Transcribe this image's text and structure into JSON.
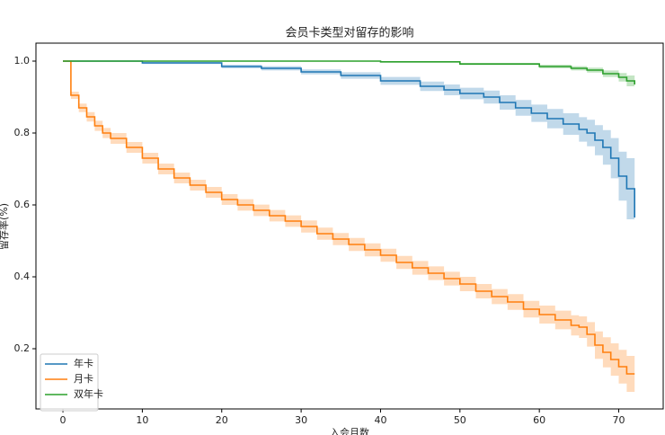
{
  "chart_data": {
    "type": "step",
    "title": "会员卡类型对留存的影响",
    "x_label": "入会月数",
    "y_label": "留存率(%)",
    "xlim": [
      -3.4,
      75.6
    ],
    "ylim": [
      0.0325,
      1.05
    ],
    "xticks": [
      0,
      10,
      20,
      30,
      40,
      50,
      60,
      70
    ],
    "yticks": [
      {
        "value": 0.2,
        "label": "0.2"
      },
      {
        "value": 0.4,
        "label": "0.4"
      },
      {
        "value": 0.6,
        "label": "0.6"
      },
      {
        "value": 0.8,
        "label": "0.8"
      },
      {
        "value": 1.0,
        "label": "1.0"
      }
    ],
    "legend": "lower left",
    "series": [
      {
        "name": "年卡",
        "color": "#1f77b4",
        "x": [
          0,
          10,
          20,
          25,
          30,
          35,
          40,
          45,
          48,
          50,
          53,
          55,
          57,
          59,
          61,
          63,
          65,
          66,
          67,
          68,
          69,
          70,
          71,
          72
        ],
        "values": [
          1.0,
          0.995,
          0.985,
          0.98,
          0.97,
          0.96,
          0.945,
          0.93,
          0.92,
          0.91,
          0.9,
          0.885,
          0.87,
          0.855,
          0.84,
          0.825,
          0.81,
          0.8,
          0.78,
          0.76,
          0.73,
          0.68,
          0.645,
          0.565
        ],
        "ci_lower": [
          1.0,
          0.992,
          0.98,
          0.974,
          0.963,
          0.951,
          0.934,
          0.917,
          0.905,
          0.894,
          0.882,
          0.865,
          0.848,
          0.831,
          0.813,
          0.795,
          0.776,
          0.763,
          0.738,
          0.712,
          0.674,
          0.612,
          0.56,
          0.445
        ],
        "ci_upper": [
          1.0,
          0.998,
          0.99,
          0.986,
          0.977,
          0.969,
          0.956,
          0.943,
          0.935,
          0.926,
          0.918,
          0.905,
          0.892,
          0.879,
          0.867,
          0.855,
          0.844,
          0.837,
          0.822,
          0.808,
          0.786,
          0.748,
          0.73,
          0.685
        ]
      },
      {
        "name": "月卡",
        "color": "#ff7f0e",
        "x": [
          0,
          1,
          2,
          3,
          4,
          5,
          6,
          8,
          10,
          12,
          14,
          16,
          18,
          20,
          22,
          24,
          26,
          28,
          30,
          32,
          34,
          36,
          38,
          40,
          42,
          44,
          46,
          48,
          50,
          52,
          54,
          56,
          58,
          60,
          62,
          64,
          65,
          66,
          67,
          68,
          69,
          70,
          71,
          72
        ],
        "values": [
          1.0,
          0.905,
          0.87,
          0.845,
          0.82,
          0.8,
          0.785,
          0.76,
          0.73,
          0.7,
          0.675,
          0.655,
          0.635,
          0.615,
          0.6,
          0.585,
          0.57,
          0.555,
          0.54,
          0.52,
          0.505,
          0.49,
          0.475,
          0.46,
          0.44,
          0.425,
          0.41,
          0.395,
          0.38,
          0.36,
          0.345,
          0.33,
          0.31,
          0.295,
          0.28,
          0.265,
          0.26,
          0.24,
          0.21,
          0.19,
          0.17,
          0.15,
          0.13,
          0.13
        ],
        "ci_lower": [
          1.0,
          0.895,
          0.858,
          0.832,
          0.806,
          0.786,
          0.77,
          0.745,
          0.715,
          0.685,
          0.66,
          0.64,
          0.62,
          0.6,
          0.584,
          0.569,
          0.554,
          0.539,
          0.523,
          0.503,
          0.488,
          0.472,
          0.457,
          0.442,
          0.422,
          0.406,
          0.391,
          0.376,
          0.36,
          0.34,
          0.324,
          0.308,
          0.287,
          0.27,
          0.254,
          0.237,
          0.23,
          0.206,
          0.172,
          0.148,
          0.125,
          0.103,
          0.08,
          0.075
        ],
        "ci_upper": [
          1.0,
          0.915,
          0.882,
          0.858,
          0.834,
          0.814,
          0.8,
          0.775,
          0.745,
          0.715,
          0.69,
          0.67,
          0.65,
          0.63,
          0.616,
          0.601,
          0.586,
          0.571,
          0.557,
          0.537,
          0.522,
          0.508,
          0.493,
          0.478,
          0.458,
          0.444,
          0.429,
          0.414,
          0.4,
          0.38,
          0.366,
          0.352,
          0.333,
          0.32,
          0.306,
          0.293,
          0.29,
          0.274,
          0.248,
          0.232,
          0.215,
          0.197,
          0.18,
          0.185
        ]
      },
      {
        "name": "双年卡",
        "color": "#2ca02c",
        "x": [
          0,
          20,
          40,
          50,
          60,
          64,
          66,
          68,
          70,
          71,
          72
        ],
        "values": [
          1.0,
          1.0,
          0.998,
          0.992,
          0.985,
          0.98,
          0.975,
          0.965,
          0.955,
          0.945,
          0.935
        ],
        "ci_lower": [
          1.0,
          0.999,
          0.996,
          0.989,
          0.98,
          0.974,
          0.968,
          0.956,
          0.943,
          0.93,
          0.915
        ],
        "ci_upper": [
          1.0,
          1.0,
          1.0,
          0.995,
          0.99,
          0.986,
          0.982,
          0.974,
          0.967,
          0.96,
          0.955
        ]
      }
    ]
  }
}
